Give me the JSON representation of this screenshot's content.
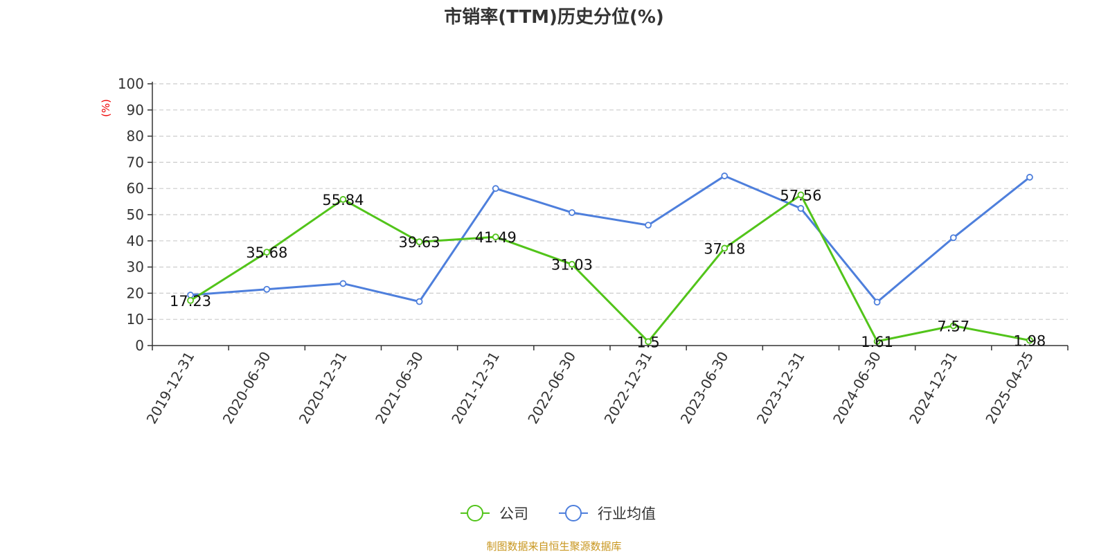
{
  "title": "市销率(TTM)历史分位(%)",
  "source": "制图数据来自恒生聚源数据库",
  "colors": {
    "company": "#52c41a",
    "industry": "#4e7fdc",
    "unit": "#ee0000",
    "source": "#c8961e"
  },
  "chart_data": {
    "type": "line",
    "title": "市销率(TTM)历史分位(%)",
    "ylabel": "(%)",
    "xlabel": "",
    "ylim": [
      0,
      100
    ],
    "yticks": [
      0,
      10,
      20,
      30,
      40,
      50,
      60,
      70,
      80,
      90,
      100
    ],
    "grid": true,
    "legend_position": "bottom-center",
    "categories": [
      "2019-12-31",
      "2020-06-30",
      "2020-12-31",
      "2021-06-30",
      "2021-12-31",
      "2022-06-30",
      "2022-12-31",
      "2023-06-30",
      "2023-12-31",
      "2024-06-30",
      "2024-12-31",
      "2025-04-25"
    ],
    "series": [
      {
        "name": "公司",
        "color": "#52c41a",
        "values": [
          17.23,
          35.68,
          55.84,
          39.63,
          41.49,
          31.03,
          1.5,
          37.18,
          57.56,
          1.61,
          7.57,
          1.98
        ],
        "labels": [
          "17.23",
          "35.68",
          "55.84",
          "39.63",
          "41.49",
          "31.03",
          "1.5",
          "37.18",
          "57.56",
          "1.61",
          "7.57",
          "1.98"
        ]
      },
      {
        "name": "行业均值",
        "color": "#4e7fdc",
        "values": [
          19.3,
          21.5,
          23.7,
          16.8,
          60.0,
          50.8,
          46.0,
          64.8,
          52.4,
          16.6,
          41.2,
          64.3
        ]
      }
    ]
  }
}
